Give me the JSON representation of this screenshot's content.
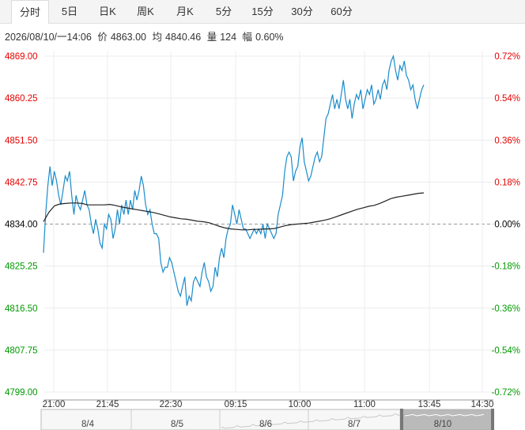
{
  "tabs": [
    {
      "label": "分时",
      "active": true
    },
    {
      "label": "5日",
      "active": false
    },
    {
      "label": "日K",
      "active": false
    },
    {
      "label": "周K",
      "active": false
    },
    {
      "label": "月K",
      "active": false
    },
    {
      "label": "5分",
      "active": false
    },
    {
      "label": "15分",
      "active": false
    },
    {
      "label": "30分",
      "active": false
    },
    {
      "label": "60分",
      "active": false
    }
  ],
  "info": {
    "datetime": "2026/08/10/一14:06",
    "price_label": "价",
    "price": "4863.00",
    "avg_label": "均",
    "avg": "4840.46",
    "vol_label": "量",
    "vol": "124",
    "pct_label": "幅",
    "pct": "0.60%"
  },
  "colors": {
    "up": "#e60000",
    "down": "#009900",
    "flat": "#000000",
    "price_line": "#1a8ccc",
    "avg_line": "#222222"
  },
  "chart_data": {
    "type": "line",
    "y_left_ticks": [
      "4869.00",
      "4860.25",
      "4851.50",
      "4842.75",
      "4834.00",
      "4825.25",
      "4816.50",
      "4807.75",
      "4799.00"
    ],
    "y_right_ticks": [
      "0.72%",
      "0.54%",
      "0.36%",
      "0.18%",
      "0.00%",
      "-0.18%",
      "-0.36%",
      "-0.54%",
      "-0.72%"
    ],
    "ylim": [
      4799.0,
      4869.0
    ],
    "base": 4834.0,
    "x_ticks": [
      "21:00",
      "21:45",
      "22:30",
      "09:15",
      "10:00",
      "11:00",
      "13:45",
      "14:30"
    ],
    "navigator_dates": [
      "8/4",
      "8/5",
      "8/6",
      "8/7",
      "8/10"
    ],
    "series": [
      {
        "name": "价",
        "values": [
          4828,
          4836,
          4842,
          4846,
          4842,
          4845,
          4843,
          4840,
          4838,
          4841,
          4844,
          4843,
          4845,
          4840,
          4836,
          4840,
          4838,
          4837,
          4839,
          4841,
          4838,
          4837,
          4834,
          4832,
          4835,
          4833,
          4830,
          4829,
          4834,
          4833,
          4836,
          4835,
          4831,
          4833,
          4837,
          4834,
          4838,
          4836,
          4839,
          4836,
          4839,
          4837,
          4841,
          4839,
          4841,
          4844,
          4842,
          4838,
          4836,
          4837,
          4834,
          4832,
          4832,
          4831,
          4826,
          4824,
          4825,
          4825,
          4827,
          4826,
          4824,
          4822,
          4820,
          4819,
          4821,
          4823,
          4817,
          4819,
          4818,
          4822,
          4823,
          4822,
          4821,
          4824,
          4826,
          4823,
          4822,
          4820,
          4821,
          4825,
          4823,
          4827,
          4829,
          4827,
          4831,
          4833,
          4834,
          4838,
          4836,
          4834,
          4837,
          4835,
          4833,
          4833,
          4832,
          4831,
          4832,
          4833,
          4832,
          4833,
          4832,
          4834,
          4831,
          4834,
          4833,
          4832,
          4831,
          4832,
          4836,
          4838,
          4840,
          4845,
          4848,
          4849,
          4848,
          4843,
          4845,
          4846,
          4850,
          4852,
          4847,
          4845,
          4843,
          4844,
          4846,
          4848,
          4849,
          4847,
          4848,
          4852,
          4856,
          4857,
          4859,
          4861,
          4858,
          4860,
          4858,
          4861,
          4864,
          4860,
          4858,
          4860,
          4856,
          4859,
          4861,
          4860,
          4862,
          4858,
          4860,
          4862,
          4861,
          4863,
          4859,
          4860,
          4862,
          4860,
          4863,
          4864,
          4862,
          4866,
          4868,
          4869,
          4866,
          4864,
          4867,
          4866,
          4868,
          4865,
          4864,
          4862,
          4863,
          4860,
          4858,
          4860,
          4862,
          4863
        ]
      },
      {
        "name": "均",
        "values": [
          4834.5,
          4836.5,
          4837.8,
          4838.2,
          4838.3,
          4838.4,
          4838.4,
          4838.3,
          4838.0,
          4838.0,
          4838.0,
          4838.0,
          4838.1,
          4837.9,
          4837.6,
          4837.4,
          4837.2,
          4837.0,
          4836.8,
          4836.6,
          4836.4,
          4836.1,
          4835.8,
          4835.5,
          4835.3,
          4835.1,
          4835.0,
          4834.8,
          4834.6,
          4834.5,
          4834.3,
          4833.9,
          4833.5,
          4833.2,
          4833.0,
          4832.9,
          4832.8,
          4832.8,
          4832.9,
          4832.9,
          4833.0,
          4833.0,
          4833.1,
          4833.4,
          4833.7,
          4833.9,
          4834.0,
          4834.1,
          4834.2,
          4834.4,
          4834.6,
          4834.8,
          4835.1,
          4835.5,
          4835.9,
          4836.3,
          4836.7,
          4837.1,
          4837.4,
          4837.7,
          4837.9,
          4838.3,
          4838.8,
          4839.3,
          4839.6,
          4839.8,
          4840.0,
          4840.2,
          4840.4,
          4840.5
        ]
      }
    ],
    "title": "",
    "xlabel": "",
    "ylabel": "",
    "grid": true
  }
}
